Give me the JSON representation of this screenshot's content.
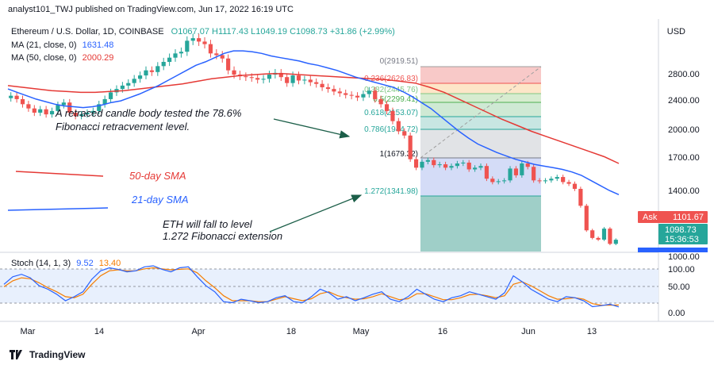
{
  "header": {
    "published": "analyst101_TWJ published on TradingView.com, Jun 17, 2022 16:19 UTC"
  },
  "legend": {
    "symbol": "Ethereum / U.S. Dollar, 1D, COINBASE",
    "ohlc": "O1067.07  H1117.43  L1049.19  C1098.73  +31.86 (+2.99%)",
    "ma21_label": "MA (21, close, 0)",
    "ma21_value": "1631.48",
    "ma50_label": "MA (50, close, 0)",
    "ma50_value": "2000.29",
    "stoch_label": "Stoch (14, 1, 3)",
    "stoch_k": "9.52",
    "stoch_d": "13.40"
  },
  "currency": "USD",
  "colors": {
    "up": "#26a69a",
    "down": "#ef5350",
    "ma21": "#2962ff",
    "ma50": "#e53935",
    "stoch_k": "#2962ff",
    "stoch_d": "#f57c00",
    "arrow": "#1b5e48"
  },
  "annotations": {
    "retrace_text_1": "A retraced candle body tested the 78.6%",
    "retrace_text_2": "Fibonacci retracvement level.",
    "sma50_label": "50-day SMA",
    "sma21_label": "21-day SMA",
    "fall_text_1": "ETH will fall to level",
    "fall_text_2": "1.272 Fibonacci extension"
  },
  "price_tags": {
    "ask_label": "Ask",
    "ask_value": "1101.67",
    "last_value": "1098.73",
    "countdown": "15:36:53"
  },
  "fib_levels": [
    {
      "ratio": "0",
      "price": "2919.51",
      "label": "0(2919.51)"
    },
    {
      "ratio": "0.236",
      "price": "2626.83",
      "label": "0.236(2626.83)"
    },
    {
      "ratio": "0.382",
      "price": "2445.76",
      "label": "0.382(2445.76)"
    },
    {
      "ratio": "0.5",
      "price": "2299.41",
      "label": "0.5(2299.41)"
    },
    {
      "ratio": "0.618",
      "price": "2153.07",
      "label": "0.618(2153.07)"
    },
    {
      "ratio": "0.786",
      "price": "1944.72",
      "label": "0.786(1944.72)"
    },
    {
      "ratio": "1",
      "price": "1679.32",
      "label": "1(1679.32)"
    },
    {
      "ratio": "1.272",
      "price": "1341.98",
      "label": "1.272(1341.98)"
    }
  ],
  "chart_data": {
    "type": "candlestick",
    "price_axis_ticks": [
      "2800.00",
      "2400.00",
      "2000.00",
      "1700.00",
      "1400.00",
      "1000.00"
    ],
    "stoch_axis_ticks": [
      "100.00",
      "50.00",
      "0.00"
    ],
    "x_tick_labels": [
      "Mar",
      "14",
      "Apr",
      "18",
      "May",
      "16",
      "Jun",
      "13"
    ],
    "candles_approx_close": [
      2800,
      2760,
      2700,
      2650,
      2600,
      2640,
      2580,
      2620,
      2690,
      2720,
      2600,
      2560,
      2580,
      2600,
      2620,
      2700,
      2760,
      2840,
      2880,
      2920,
      2950,
      3000,
      3040,
      3100,
      3080,
      3150,
      3200,
      3250,
      3300,
      3320,
      3450,
      3480,
      3440,
      3410,
      3300,
      3280,
      3240,
      3100,
      3050,
      3030,
      3020,
      3010,
      2990,
      3000,
      3050,
      3070,
      3020,
      2950,
      3040,
      2980,
      2990,
      2960,
      2940,
      2900,
      2880,
      2850,
      2830,
      2810,
      2800,
      2780,
      2820,
      2860,
      2760,
      2700,
      2620,
      2500,
      2380,
      2330,
      2050,
      1950,
      2020,
      2040,
      1980,
      1990,
      1950,
      1970,
      2000,
      2010,
      1930,
      1950,
      1970,
      1820,
      1780,
      1790,
      1800,
      1940,
      1860,
      2000,
      1960,
      1800,
      1790,
      1800,
      1820,
      1840,
      1780,
      1760,
      1700,
      1500,
      1210,
      1120,
      1100,
      1230,
      1050,
      1098.73
    ],
    "ma21_approx": [
      2880,
      2840,
      2800,
      2760,
      2730,
      2700,
      2680,
      2670,
      2660,
      2670,
      2690,
      2720,
      2740,
      2780,
      2820,
      2870,
      2920,
      2980,
      3040,
      3100,
      3160,
      3200,
      3250,
      3300,
      3330,
      3330,
      3320,
      3300,
      3270,
      3250,
      3230,
      3210,
      3180,
      3160,
      3130,
      3100,
      3060,
      3020,
      2990,
      2960,
      2930,
      2900,
      2850,
      2790,
      2720,
      2650,
      2560,
      2470,
      2380,
      2300,
      2230,
      2180,
      2130,
      2090,
      2050,
      2020,
      1990,
      1970,
      1950,
      1930,
      1900,
      1860,
      1800,
      1740,
      1680,
      1631.48
    ],
    "ma50_approx": [
      2920,
      2900,
      2880,
      2860,
      2850,
      2840,
      2840,
      2850,
      2860,
      2880,
      2900,
      2920,
      2940,
      2970,
      3000,
      3020,
      3040,
      3050,
      3060,
      3060,
      3050,
      3040,
      3030,
      3020,
      3010,
      3000,
      2990,
      2970,
      2950,
      2900,
      2840,
      2760,
      2680,
      2600,
      2520,
      2450,
      2380,
      2320,
      2260,
      2200,
      2140,
      2080,
      2000.29
    ],
    "stoch_k_approx": [
      55,
      70,
      75,
      68,
      52,
      45,
      35,
      22,
      30,
      40,
      65,
      82,
      88,
      85,
      80,
      82,
      90,
      92,
      85,
      80,
      88,
      90,
      70,
      52,
      40,
      20,
      18,
      25,
      22,
      18,
      20,
      28,
      32,
      20,
      18,
      30,
      45,
      38,
      25,
      30,
      22,
      28,
      35,
      40,
      25,
      20,
      30,
      45,
      35,
      25,
      20,
      28,
      32,
      40,
      35,
      30,
      25,
      38,
      72,
      60,
      45,
      35,
      25,
      20,
      30,
      28,
      22,
      10,
      12,
      15,
      9.52
    ],
    "stoch_d_approx": [
      50,
      62,
      68,
      66,
      58,
      48,
      40,
      30,
      28,
      35,
      55,
      72,
      82,
      84,
      82,
      82,
      86,
      88,
      86,
      84,
      85,
      86,
      78,
      62,
      48,
      32,
      22,
      22,
      22,
      20,
      20,
      25,
      30,
      26,
      22,
      26,
      36,
      40,
      32,
      28,
      25,
      26,
      30,
      36,
      30,
      24,
      26,
      36,
      36,
      30,
      24,
      24,
      28,
      34,
      35,
      32,
      28,
      32,
      55,
      60,
      52,
      42,
      32,
      25,
      26,
      28,
      25,
      16,
      13,
      13,
      13.4
    ]
  }
}
